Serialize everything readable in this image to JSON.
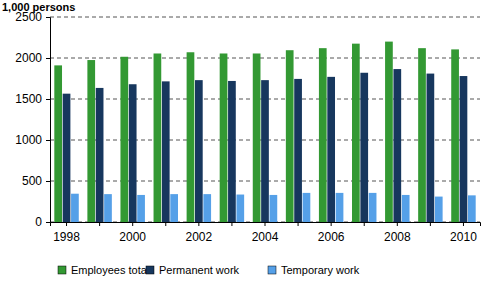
{
  "chart_data": {
    "type": "bar",
    "y_label": "1,000 persons",
    "categories": [
      "1998",
      null,
      "2000",
      null,
      "2002",
      null,
      "2004",
      null,
      "2006",
      null,
      "2008",
      null,
      "2010"
    ],
    "series": [
      {
        "name": "Employees total",
        "color": "#339933",
        "values": [
          1910,
          1975,
          2015,
          2055,
          2070,
          2055,
          2055,
          2095,
          2120,
          2175,
          2200,
          2120,
          2105
        ]
      },
      {
        "name": "Permanent work",
        "color": "#17375e",
        "values": [
          1565,
          1635,
          1680,
          1715,
          1730,
          1720,
          1730,
          1745,
          1770,
          1820,
          1865,
          1810,
          1780
        ]
      },
      {
        "name": "Temporary work",
        "color": "#55a0e8",
        "values": [
          345,
          340,
          330,
          340,
          340,
          335,
          330,
          355,
          355,
          355,
          330,
          310,
          325
        ]
      }
    ],
    "ylim": [
      0,
      2500
    ],
    "yticks": [
      0,
      500,
      1000,
      1500,
      2000,
      2500
    ],
    "grid": true,
    "legend": "bottom"
  }
}
